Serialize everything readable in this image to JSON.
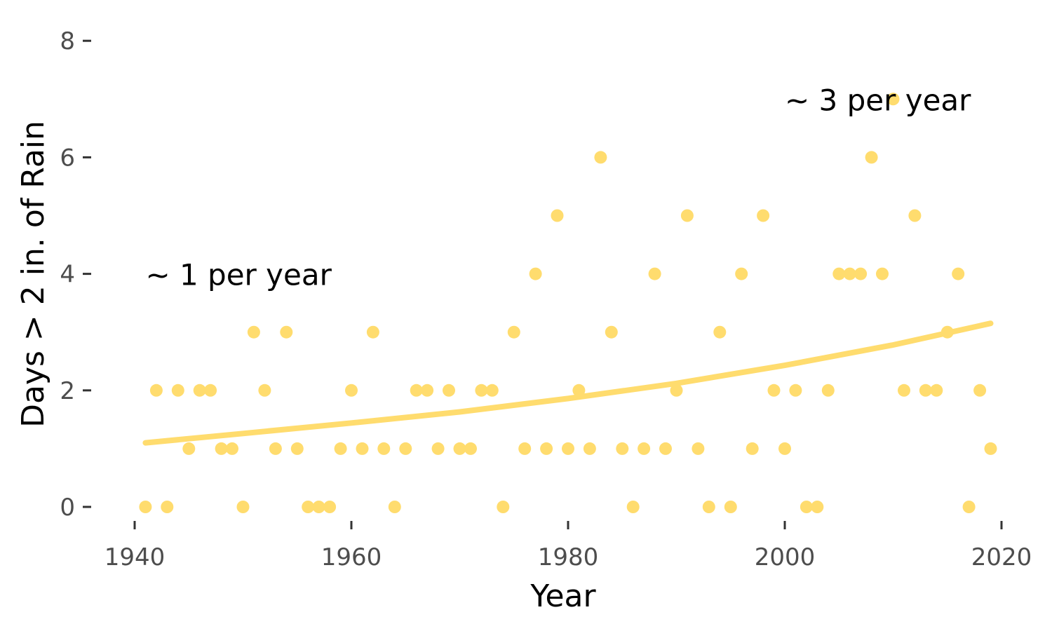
{
  "chart_data": {
    "type": "scatter",
    "title": "",
    "xlabel": "Year",
    "ylabel": "Days > 2 in. of Rain",
    "xlim": [
      1936,
      2023
    ],
    "ylim": [
      -0.4,
      8.1
    ],
    "x_ticks": [
      1940,
      1960,
      1980,
      2000,
      2020
    ],
    "y_ticks": [
      0,
      2,
      4,
      6,
      8
    ],
    "grid": false,
    "point_color": "#FFDC6E",
    "series": [
      {
        "x": [
          1941,
          1942,
          1943,
          1944,
          1945,
          1946,
          1947,
          1948,
          1949,
          1950,
          1951,
          1952,
          1953,
          1954,
          1955,
          1956,
          1957,
          1958,
          1959,
          1960,
          1961,
          1962,
          1963,
          1964,
          1965,
          1966,
          1967,
          1968,
          1969,
          1970,
          1971,
          1972,
          1973,
          1974,
          1975,
          1976,
          1977,
          1978,
          1979,
          1980,
          1981,
          1982,
          1983,
          1984,
          1985,
          1986,
          1987,
          1988,
          1989,
          1990,
          1991,
          1992,
          1993,
          1994,
          1995,
          1996,
          1997,
          1998,
          1999,
          2000,
          2001,
          2002,
          2003,
          2004,
          2005,
          2006,
          2007,
          2008,
          2009,
          2010,
          2011,
          2012,
          2013,
          2014,
          2015,
          2016,
          2017,
          2018,
          2019
        ],
        "y": [
          0,
          2,
          0,
          2,
          1,
          2,
          2,
          1,
          1,
          0,
          3,
          2,
          1,
          3,
          1,
          0,
          0,
          0,
          1,
          2,
          1,
          3,
          1,
          0,
          1,
          2,
          2,
          1,
          2,
          1,
          1,
          2,
          2,
          0,
          3,
          1,
          4,
          1,
          5,
          1,
          2,
          1,
          6,
          3,
          1,
          0,
          1,
          4,
          1,
          2,
          5,
          1,
          0,
          3,
          0,
          4,
          1,
          5,
          2,
          1,
          2,
          0,
          0,
          2,
          4,
          4,
          4,
          6,
          4,
          7,
          2,
          5,
          2,
          2,
          3,
          4,
          0,
          2,
          1
        ]
      }
    ],
    "trend": {
      "type": "exponential",
      "color": "#FFDC6E",
      "x": [
        1941,
        1950,
        1960,
        1970,
        1980,
        1990,
        2000,
        2010,
        2019
      ],
      "y": [
        1.1,
        1.26,
        1.44,
        1.63,
        1.86,
        2.12,
        2.43,
        2.78,
        3.15
      ]
    },
    "annotations": [
      {
        "text": "~ 1 per year",
        "x": 1941,
        "y": 4
      },
      {
        "text": "~ 3 per year",
        "x": 2000,
        "y": 7
      }
    ]
  }
}
